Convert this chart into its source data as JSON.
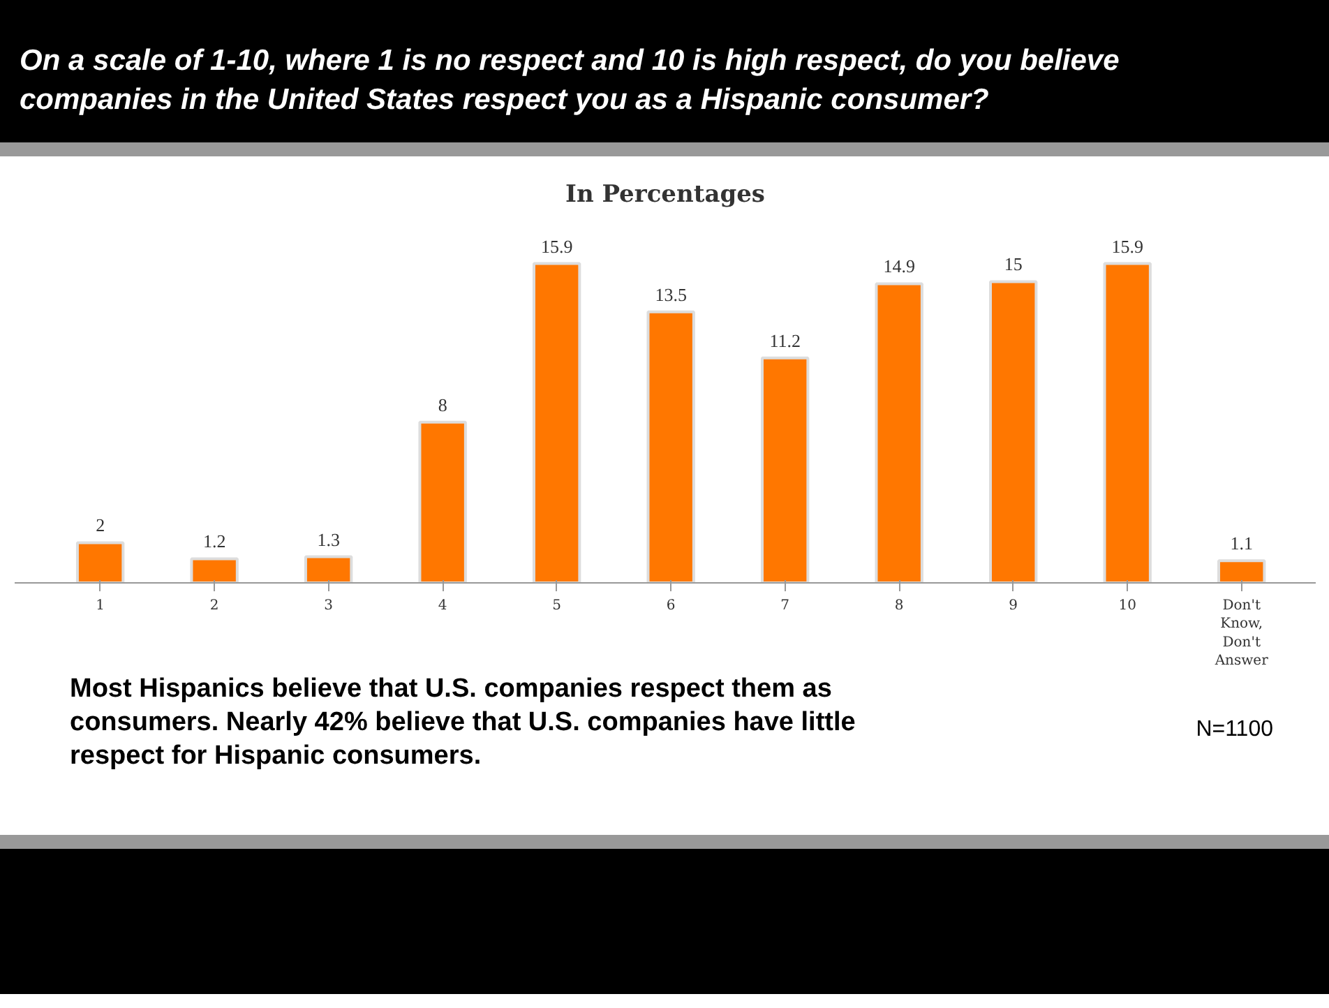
{
  "chart_data": {
    "type": "bar",
    "title": "On a scale of 1-10, where 1 is no respect and 10 is high respect, do you believe companies in the United States respect you as a Hispanic consumer?",
    "subtitle": "In Percentages",
    "categories": [
      "1",
      "2",
      "3",
      "4",
      "5",
      "6",
      "7",
      "8",
      "9",
      "10",
      "Don't Know, Don't Answer"
    ],
    "values": [
      2,
      1.2,
      1.3,
      8,
      15.9,
      13.5,
      11.2,
      14.9,
      15,
      15.9,
      1.1
    ],
    "color": "#ff7700",
    "data_labels": true,
    "grid": false,
    "annotations": [
      "Most Hispanics believe that U.S. companies respect them as consumers. Nearly 42% believe that U.S. companies have little respect for Hispanic consumers.",
      "N=1100"
    ]
  }
}
